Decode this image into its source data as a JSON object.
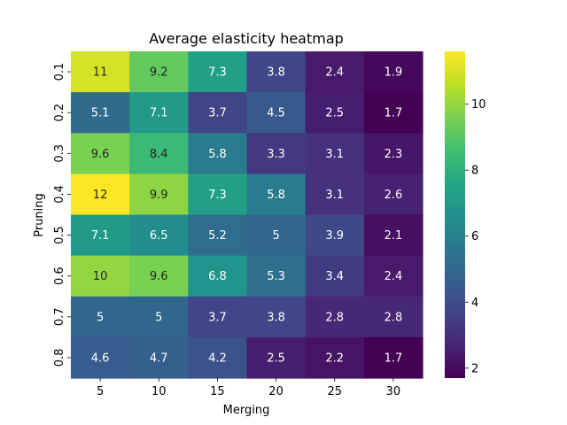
{
  "chart_data": {
    "type": "heatmap",
    "title": "Average elasticity heatmap",
    "xlabel": "Merging",
    "ylabel": "Pruning",
    "x": [
      "5",
      "10",
      "15",
      "20",
      "25",
      "30"
    ],
    "y": [
      "0.1",
      "0.2",
      "0.3",
      "0.4",
      "0.5",
      "0.6",
      "0.7",
      "0.8"
    ],
    "values": [
      [
        11,
        9.2,
        7.3,
        3.8,
        2.4,
        1.9
      ],
      [
        5.1,
        7.1,
        3.7,
        4.5,
        2.5,
        1.7
      ],
      [
        9.6,
        8.4,
        5.8,
        3.3,
        3.1,
        2.3
      ],
      [
        12,
        9.9,
        7.3,
        5.8,
        3.1,
        2.6
      ],
      [
        7.1,
        6.5,
        5.2,
        5,
        3.9,
        2.1
      ],
      [
        10,
        9.6,
        6.8,
        5.3,
        3.4,
        2.4
      ],
      [
        5,
        5,
        3.7,
        3.8,
        2.8,
        2.8
      ],
      [
        4.6,
        4.7,
        4.2,
        2.5,
        2.2,
        1.7
      ]
    ],
    "colormap": "viridis",
    "color_range": [
      1.7,
      11.6
    ],
    "colorbar_ticks": [
      2,
      4,
      6,
      8,
      10
    ],
    "annotations": true,
    "grid": false
  }
}
